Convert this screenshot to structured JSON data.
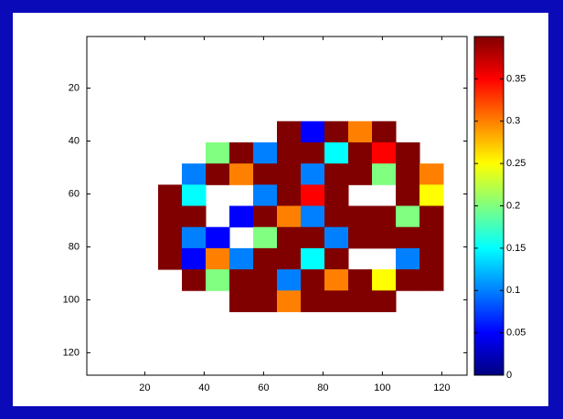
{
  "chart_data": {
    "type": "heatmap",
    "colormap": "jet",
    "x": [
      4.5,
      12.5,
      20.5,
      28.5,
      36.5,
      44.5,
      52.5,
      60.5,
      68.5,
      76.5,
      84.5,
      92.5,
      100.5,
      108.5,
      116.5,
      124.5
    ],
    "y": [
      4.5,
      12.5,
      20.5,
      28.5,
      36.5,
      44.5,
      52.5,
      60.5,
      68.5,
      76.5,
      84.5,
      92.5,
      100.5,
      108.5,
      116.5,
      124.5
    ],
    "values": [
      [
        null,
        null,
        null,
        null,
        null,
        null,
        null,
        null,
        null,
        null,
        null,
        null,
        null,
        null,
        null,
        null
      ],
      [
        null,
        null,
        null,
        null,
        null,
        null,
        null,
        null,
        null,
        null,
        null,
        null,
        null,
        null,
        null,
        null
      ],
      [
        null,
        null,
        null,
        null,
        null,
        null,
        null,
        null,
        null,
        null,
        null,
        null,
        null,
        null,
        null,
        null
      ],
      [
        null,
        null,
        null,
        null,
        null,
        null,
        null,
        null,
        null,
        null,
        null,
        null,
        null,
        null,
        null,
        null
      ],
      [
        null,
        null,
        null,
        null,
        null,
        null,
        null,
        null,
        0.4,
        0.05,
        0.4,
        0.3,
        0.4,
        null,
        null,
        null
      ],
      [
        null,
        null,
        null,
        null,
        null,
        0.2,
        0.4,
        0.1,
        0.4,
        0.4,
        0.15,
        0.4,
        0.35,
        0.4,
        null,
        null
      ],
      [
        null,
        null,
        null,
        null,
        0.1,
        0.4,
        0.3,
        0.4,
        0.4,
        0.1,
        0.4,
        0.4,
        0.2,
        0.4,
        0.3,
        null
      ],
      [
        null,
        null,
        null,
        0.4,
        0.15,
        null,
        null,
        0.1,
        0.4,
        0.35,
        0.4,
        null,
        null,
        0.4,
        0.25,
        null
      ],
      [
        null,
        null,
        null,
        0.4,
        0.4,
        null,
        0.05,
        0.4,
        0.3,
        0.1,
        0.4,
        0.4,
        0.4,
        0.2,
        0.4,
        null
      ],
      [
        null,
        null,
        null,
        0.4,
        0.1,
        0.05,
        null,
        0.2,
        0.4,
        0.4,
        0.1,
        0.4,
        0.4,
        0.4,
        0.4,
        null
      ],
      [
        null,
        null,
        null,
        0.4,
        0.05,
        0.3,
        0.1,
        0.4,
        0.4,
        0.15,
        0.4,
        null,
        null,
        0.1,
        0.4,
        null
      ],
      [
        null,
        null,
        null,
        null,
        0.4,
        0.2,
        0.4,
        0.4,
        0.1,
        0.4,
        0.3,
        0.4,
        0.25,
        0.4,
        0.4,
        null
      ],
      [
        null,
        null,
        null,
        null,
        null,
        null,
        0.4,
        0.4,
        0.3,
        0.4,
        0.4,
        0.4,
        0.4,
        null,
        null,
        null
      ],
      [
        null,
        null,
        null,
        null,
        null,
        null,
        null,
        null,
        null,
        null,
        null,
        null,
        null,
        null,
        null,
        null
      ],
      [
        null,
        null,
        null,
        null,
        null,
        null,
        null,
        null,
        null,
        null,
        null,
        null,
        null,
        null,
        null,
        null
      ],
      [
        null,
        null,
        null,
        null,
        null,
        null,
        null,
        null,
        null,
        null,
        null,
        null,
        null,
        null,
        null,
        null
      ]
    ],
    "xlim": [
      0.5,
      128.5
    ],
    "ylim": [
      0.5,
      128.5
    ],
    "y_reversed": true,
    "xticks": [
      20,
      40,
      60,
      80,
      100,
      120
    ],
    "yticks": [
      20,
      40,
      60,
      80,
      100,
      120
    ],
    "clim": [
      0,
      0.4
    ],
    "colorbar_ticks": [
      0,
      0.05,
      0.1,
      0.15,
      0.2,
      0.25,
      0.3,
      0.35
    ]
  }
}
